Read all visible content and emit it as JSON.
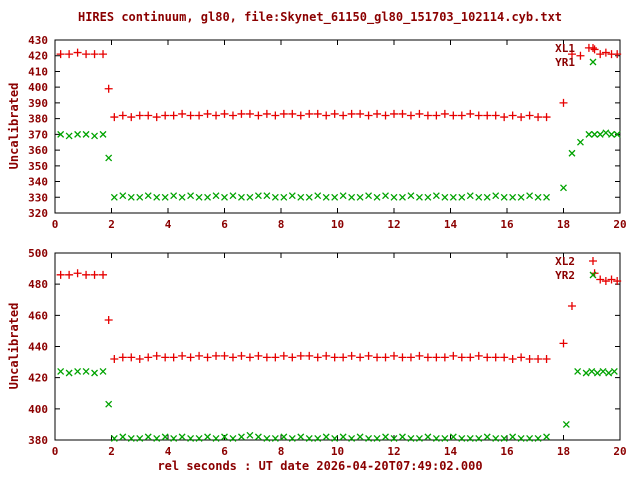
{
  "title": "HIRES continuum, gl80, file:Skynet_61150_gl80_151703_102114.cyb.txt",
  "xlabel": "rel seconds : UT date 2026-04-20T07:49:02.000",
  "colors": {
    "text": "#8b0000",
    "axis": "#000000",
    "background": "#ffffff",
    "red": "#e60000",
    "green": "#00a300"
  },
  "chart_data": [
    {
      "type": "scatter",
      "ylabel": "Uncalibrated",
      "xlim": [
        0,
        20
      ],
      "ylim": [
        320,
        430
      ],
      "xticks": [
        0,
        2,
        4,
        6,
        8,
        10,
        12,
        14,
        16,
        18,
        20
      ],
      "yticks": [
        320,
        330,
        340,
        350,
        360,
        370,
        380,
        390,
        400,
        410,
        420,
        430
      ],
      "legend_position": "top-right",
      "grid": false,
      "series": [
        {
          "name": "XL1",
          "marker": "plus",
          "color": "#e60000",
          "x": [
            0.2,
            0.5,
            0.8,
            1.1,
            1.4,
            1.7,
            1.9,
            2.1,
            2.4,
            2.7,
            3.0,
            3.3,
            3.6,
            3.9,
            4.2,
            4.5,
            4.8,
            5.1,
            5.4,
            5.7,
            6.0,
            6.3,
            6.6,
            6.9,
            7.2,
            7.5,
            7.8,
            8.1,
            8.4,
            8.7,
            9.0,
            9.3,
            9.6,
            9.9,
            10.2,
            10.5,
            10.8,
            11.1,
            11.4,
            11.7,
            12.0,
            12.3,
            12.6,
            12.9,
            13.2,
            13.5,
            13.8,
            14.1,
            14.4,
            14.7,
            15.0,
            15.3,
            15.6,
            15.9,
            16.2,
            16.5,
            16.8,
            17.1,
            17.4,
            18.0,
            18.3,
            18.6,
            18.9,
            19.1,
            19.3,
            19.5,
            19.7,
            19.9
          ],
          "y": [
            421,
            421,
            422,
            421,
            421,
            421,
            399,
            381,
            382,
            381,
            382,
            382,
            381,
            382,
            382,
            383,
            382,
            382,
            383,
            382,
            383,
            382,
            383,
            383,
            382,
            383,
            382,
            383,
            383,
            382,
            383,
            383,
            382,
            383,
            382,
            383,
            383,
            382,
            383,
            382,
            383,
            383,
            382,
            383,
            382,
            382,
            383,
            382,
            382,
            383,
            382,
            382,
            382,
            381,
            382,
            381,
            382,
            381,
            381,
            390,
            421,
            420,
            425,
            424,
            421,
            422,
            421,
            421
          ]
        },
        {
          "name": "YR1",
          "marker": "cross",
          "color": "#00a300",
          "x": [
            0.2,
            0.5,
            0.8,
            1.1,
            1.4,
            1.7,
            1.9,
            2.1,
            2.4,
            2.7,
            3.0,
            3.3,
            3.6,
            3.9,
            4.2,
            4.5,
            4.8,
            5.1,
            5.4,
            5.7,
            6.0,
            6.3,
            6.6,
            6.9,
            7.2,
            7.5,
            7.8,
            8.1,
            8.4,
            8.7,
            9.0,
            9.3,
            9.6,
            9.9,
            10.2,
            10.5,
            10.8,
            11.1,
            11.4,
            11.7,
            12.0,
            12.3,
            12.6,
            12.9,
            13.2,
            13.5,
            13.8,
            14.1,
            14.4,
            14.7,
            15.0,
            15.3,
            15.6,
            15.9,
            16.2,
            16.5,
            16.8,
            17.1,
            17.4,
            18.0,
            18.3,
            18.6,
            18.9,
            19.1,
            19.3,
            19.5,
            19.7,
            19.9
          ],
          "y": [
            370,
            369,
            370,
            370,
            369,
            370,
            355,
            330,
            331,
            330,
            330,
            331,
            330,
            330,
            331,
            330,
            331,
            330,
            330,
            331,
            330,
            331,
            330,
            330,
            331,
            331,
            330,
            330,
            331,
            330,
            330,
            331,
            330,
            330,
            331,
            330,
            330,
            331,
            330,
            331,
            330,
            330,
            331,
            330,
            330,
            331,
            330,
            330,
            330,
            331,
            330,
            330,
            331,
            330,
            330,
            330,
            331,
            330,
            330,
            336,
            358,
            365,
            370,
            370,
            370,
            371,
            370,
            370
          ]
        }
      ]
    },
    {
      "type": "scatter",
      "ylabel": "Uncalibrated",
      "xlim": [
        0,
        20
      ],
      "ylim": [
        380,
        500
      ],
      "xticks": [
        0,
        2,
        4,
        6,
        8,
        10,
        12,
        14,
        16,
        18,
        20
      ],
      "yticks": [
        380,
        400,
        420,
        440,
        460,
        480,
        500
      ],
      "legend_position": "top-right",
      "grid": false,
      "series": [
        {
          "name": "XL2",
          "marker": "plus",
          "color": "#e60000",
          "x": [
            0.2,
            0.5,
            0.8,
            1.1,
            1.4,
            1.7,
            1.9,
            2.1,
            2.4,
            2.7,
            3.0,
            3.3,
            3.6,
            3.9,
            4.2,
            4.5,
            4.8,
            5.1,
            5.4,
            5.7,
            6.0,
            6.3,
            6.6,
            6.9,
            7.2,
            7.5,
            7.8,
            8.1,
            8.4,
            8.7,
            9.0,
            9.3,
            9.6,
            9.9,
            10.2,
            10.5,
            10.8,
            11.1,
            11.4,
            11.7,
            12.0,
            12.3,
            12.6,
            12.9,
            13.2,
            13.5,
            13.8,
            14.1,
            14.4,
            14.7,
            15.0,
            15.3,
            15.6,
            15.9,
            16.2,
            16.5,
            16.8,
            17.1,
            17.4,
            18.0,
            18.3,
            19.1,
            19.3,
            19.5,
            19.7,
            19.9
          ],
          "y": [
            486,
            486,
            487,
            486,
            486,
            486,
            457,
            432,
            433,
            433,
            432,
            433,
            434,
            433,
            433,
            434,
            433,
            434,
            433,
            434,
            434,
            433,
            434,
            433,
            434,
            433,
            433,
            434,
            433,
            434,
            434,
            433,
            434,
            433,
            433,
            434,
            433,
            434,
            433,
            433,
            434,
            433,
            433,
            434,
            433,
            433,
            433,
            434,
            433,
            433,
            434,
            433,
            433,
            433,
            432,
            433,
            432,
            432,
            432,
            442,
            466,
            487,
            483,
            482,
            483,
            482
          ]
        },
        {
          "name": "YR2",
          "marker": "cross",
          "color": "#00a300",
          "x": [
            0.2,
            0.5,
            0.8,
            1.1,
            1.4,
            1.7,
            1.9,
            2.1,
            2.4,
            2.7,
            3.0,
            3.3,
            3.6,
            3.9,
            4.2,
            4.5,
            4.8,
            5.1,
            5.4,
            5.7,
            6.0,
            6.3,
            6.6,
            6.9,
            7.2,
            7.5,
            7.8,
            8.1,
            8.4,
            8.7,
            9.0,
            9.3,
            9.6,
            9.9,
            10.2,
            10.5,
            10.8,
            11.1,
            11.4,
            11.7,
            12.0,
            12.3,
            12.6,
            12.9,
            13.2,
            13.5,
            13.8,
            14.1,
            14.4,
            14.7,
            15.0,
            15.3,
            15.6,
            15.9,
            16.2,
            16.5,
            16.8,
            17.1,
            17.4,
            18.1,
            18.5,
            18.8,
            19.0,
            19.2,
            19.4,
            19.6,
            19.8
          ],
          "y": [
            424,
            423,
            424,
            424,
            423,
            424,
            403,
            381,
            382,
            381,
            381,
            382,
            381,
            382,
            381,
            382,
            381,
            381,
            382,
            381,
            382,
            381,
            382,
            383,
            382,
            381,
            381,
            382,
            381,
            382,
            381,
            381,
            382,
            381,
            382,
            381,
            382,
            381,
            381,
            382,
            381,
            382,
            381,
            381,
            382,
            381,
            381,
            382,
            381,
            381,
            381,
            382,
            381,
            381,
            382,
            381,
            381,
            381,
            382,
            390,
            424,
            423,
            424,
            423,
            424,
            423,
            424
          ]
        }
      ]
    }
  ]
}
